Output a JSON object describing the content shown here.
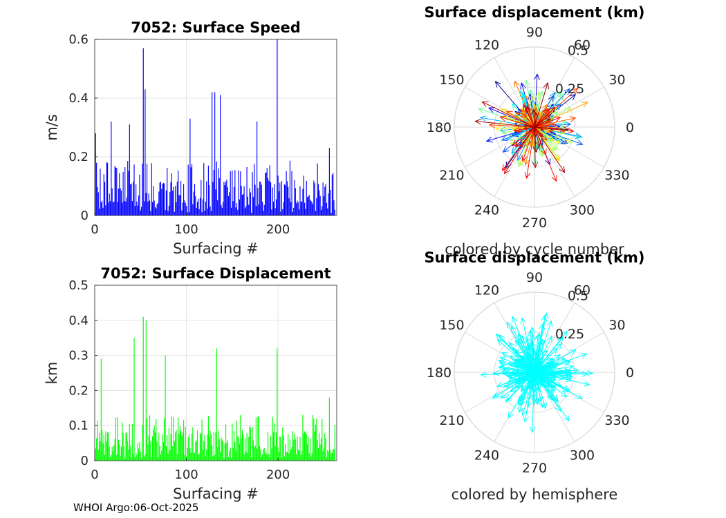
{
  "chart_data": [
    {
      "type": "bar",
      "title": "7052: Surface Speed",
      "xlabel": "Surfacing #",
      "ylabel": "m/s",
      "xlim": [
        0,
        264
      ],
      "ylim": [
        0,
        0.6
      ],
      "xticks": [
        0,
        100,
        200
      ],
      "yticks": [
        0,
        0.2,
        0.4,
        0.6
      ],
      "ytick_labels": [
        "0",
        "0.2",
        "0.4",
        "0.6"
      ],
      "color": "#0000ff",
      "n_points": 262,
      "notable_points": [
        {
          "x": 1,
          "y": 0.28
        },
        {
          "x": 18,
          "y": 0.32
        },
        {
          "x": 38,
          "y": 0.31
        },
        {
          "x": 53,
          "y": 0.57
        },
        {
          "x": 55,
          "y": 0.43
        },
        {
          "x": 104,
          "y": 0.33
        },
        {
          "x": 128,
          "y": 0.42
        },
        {
          "x": 131,
          "y": 0.42
        },
        {
          "x": 137,
          "y": 0.41
        },
        {
          "x": 177,
          "y": 0.32
        },
        {
          "x": 199,
          "y": 0.6
        },
        {
          "x": 256,
          "y": 0.23
        }
      ]
    },
    {
      "type": "bar",
      "title": "7052: Surface Displacement",
      "xlabel": "Surfacing #",
      "ylabel": "km",
      "xlim": [
        0,
        264
      ],
      "ylim": [
        0,
        0.5
      ],
      "xticks": [
        0,
        100,
        200
      ],
      "yticks": [
        0,
        0.1,
        0.2,
        0.3,
        0.4,
        0.5
      ],
      "ytick_labels": [
        "0",
        "0.1",
        "0.2",
        "0.3",
        "0.4",
        "0.5"
      ],
      "color": "#00ff00",
      "n_points": 262,
      "notable_points": [
        {
          "x": 7,
          "y": 0.29
        },
        {
          "x": 43,
          "y": 0.35
        },
        {
          "x": 53,
          "y": 0.41
        },
        {
          "x": 56,
          "y": 0.4
        },
        {
          "x": 77,
          "y": 0.3
        },
        {
          "x": 133,
          "y": 0.32
        },
        {
          "x": 199,
          "y": 0.32
        },
        {
          "x": 256,
          "y": 0.18
        }
      ]
    },
    {
      "type": "polar-quiver",
      "title": "Surface displacement (km)",
      "caption": "colored by cycle number",
      "rmax": 0.5,
      "r_ticks": [
        0.25,
        0.5
      ],
      "r_tick_labels": [
        "0.25",
        "0.5"
      ],
      "theta_ticks": [
        0,
        30,
        60,
        90,
        120,
        150,
        180,
        210,
        240,
        270,
        300,
        330
      ],
      "theta_tick_labels": [
        "0",
        "30",
        "60",
        "90",
        "120",
        "150",
        "180",
        "210",
        "240",
        "270",
        "300",
        "330"
      ],
      "colormap": "jet",
      "n_vectors": 262
    },
    {
      "type": "polar-quiver",
      "title": "Surface displacement (km)",
      "caption": "colored by hemisphere",
      "rmax": 0.5,
      "r_ticks": [
        0.25,
        0.5
      ],
      "r_tick_labels": [
        "0.25",
        "0.5"
      ],
      "theta_ticks": [
        0,
        30,
        60,
        90,
        120,
        150,
        180,
        210,
        240,
        270,
        300,
        330
      ],
      "theta_tick_labels": [
        "0",
        "30",
        "60",
        "90",
        "120",
        "150",
        "180",
        "210",
        "240",
        "270",
        "300",
        "330"
      ],
      "color": "#00ffff",
      "n_vectors": 262
    }
  ],
  "footer": "WHOI Argo:06-Oct-2025"
}
